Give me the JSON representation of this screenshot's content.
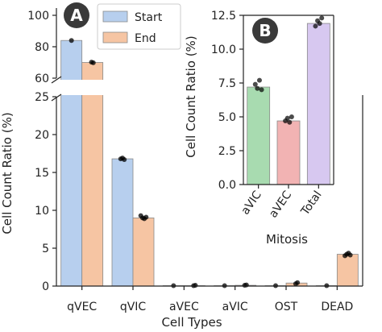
{
  "chart_data": [
    {
      "panel": "A",
      "type": "bar",
      "categories": [
        "qVEC",
        "qVIC",
        "aVEC",
        "aVIC",
        "OST",
        "DEAD"
      ],
      "series": [
        {
          "name": "Start",
          "values": [
            84.0,
            16.8,
            0.05,
            0.05,
            0.05,
            0.05
          ],
          "color": "#b7cfee"
        },
        {
          "name": "End",
          "values": [
            70.0,
            9.0,
            0.05,
            0.1,
            0.4,
            4.2
          ],
          "color": "#f6c5a3"
        }
      ],
      "points": [
        {
          "series": "Start",
          "values": [
            [
              84.0
            ],
            [
              16.8,
              16.9,
              16.7
            ],
            [
              0.05
            ],
            [
              0.05
            ],
            [
              0.05
            ],
            [
              0.05
            ]
          ]
        },
        {
          "series": "End",
          "values": [
            [
              70.2,
              69.8
            ],
            [
              9.3,
              9.0,
              8.9,
              9.1
            ],
            [
              0.05,
              0.1
            ],
            [
              0.1,
              0.15
            ],
            [
              0.3,
              0.45
            ],
            [
              4.0,
              4.2,
              4.35,
              4.1
            ]
          ]
        }
      ],
      "xlabel": "Cell Types",
      "ylabel": "Cell Count Ratio (%)",
      "y_segments": [
        {
          "range": [
            0,
            25
          ],
          "ticks": [
            0,
            5,
            10,
            15,
            20,
            25
          ]
        },
        {
          "range": [
            60,
            100
          ],
          "ticks": [
            60,
            80,
            100
          ]
        }
      ],
      "legend": {
        "placement": "top",
        "entries": [
          "Start",
          "End"
        ]
      },
      "grid": false
    },
    {
      "panel": "B",
      "type": "bar",
      "categories": [
        "aVIC",
        "aVEC",
        "Total"
      ],
      "values": [
        7.2,
        4.7,
        11.9
      ],
      "colors": [
        "#a8dbb0",
        "#f2b3b3",
        "#d7c8f0"
      ],
      "points": [
        [
          7.4,
          7.1,
          7.7,
          7.0
        ],
        [
          4.7,
          4.9,
          4.6,
          5.0
        ],
        [
          11.7,
          12.1,
          11.9,
          12.3
        ]
      ],
      "xlabel": "Mitosis",
      "ylabel": "Cell Count Ratio (%)",
      "ylim": [
        0,
        12.5
      ],
      "yticks": [
        "0.0",
        "2.5",
        "5.0",
        "7.5",
        "10.0",
        "12.5"
      ],
      "grid": false
    }
  ],
  "panel_labels": {
    "a": "A",
    "b": "B"
  }
}
